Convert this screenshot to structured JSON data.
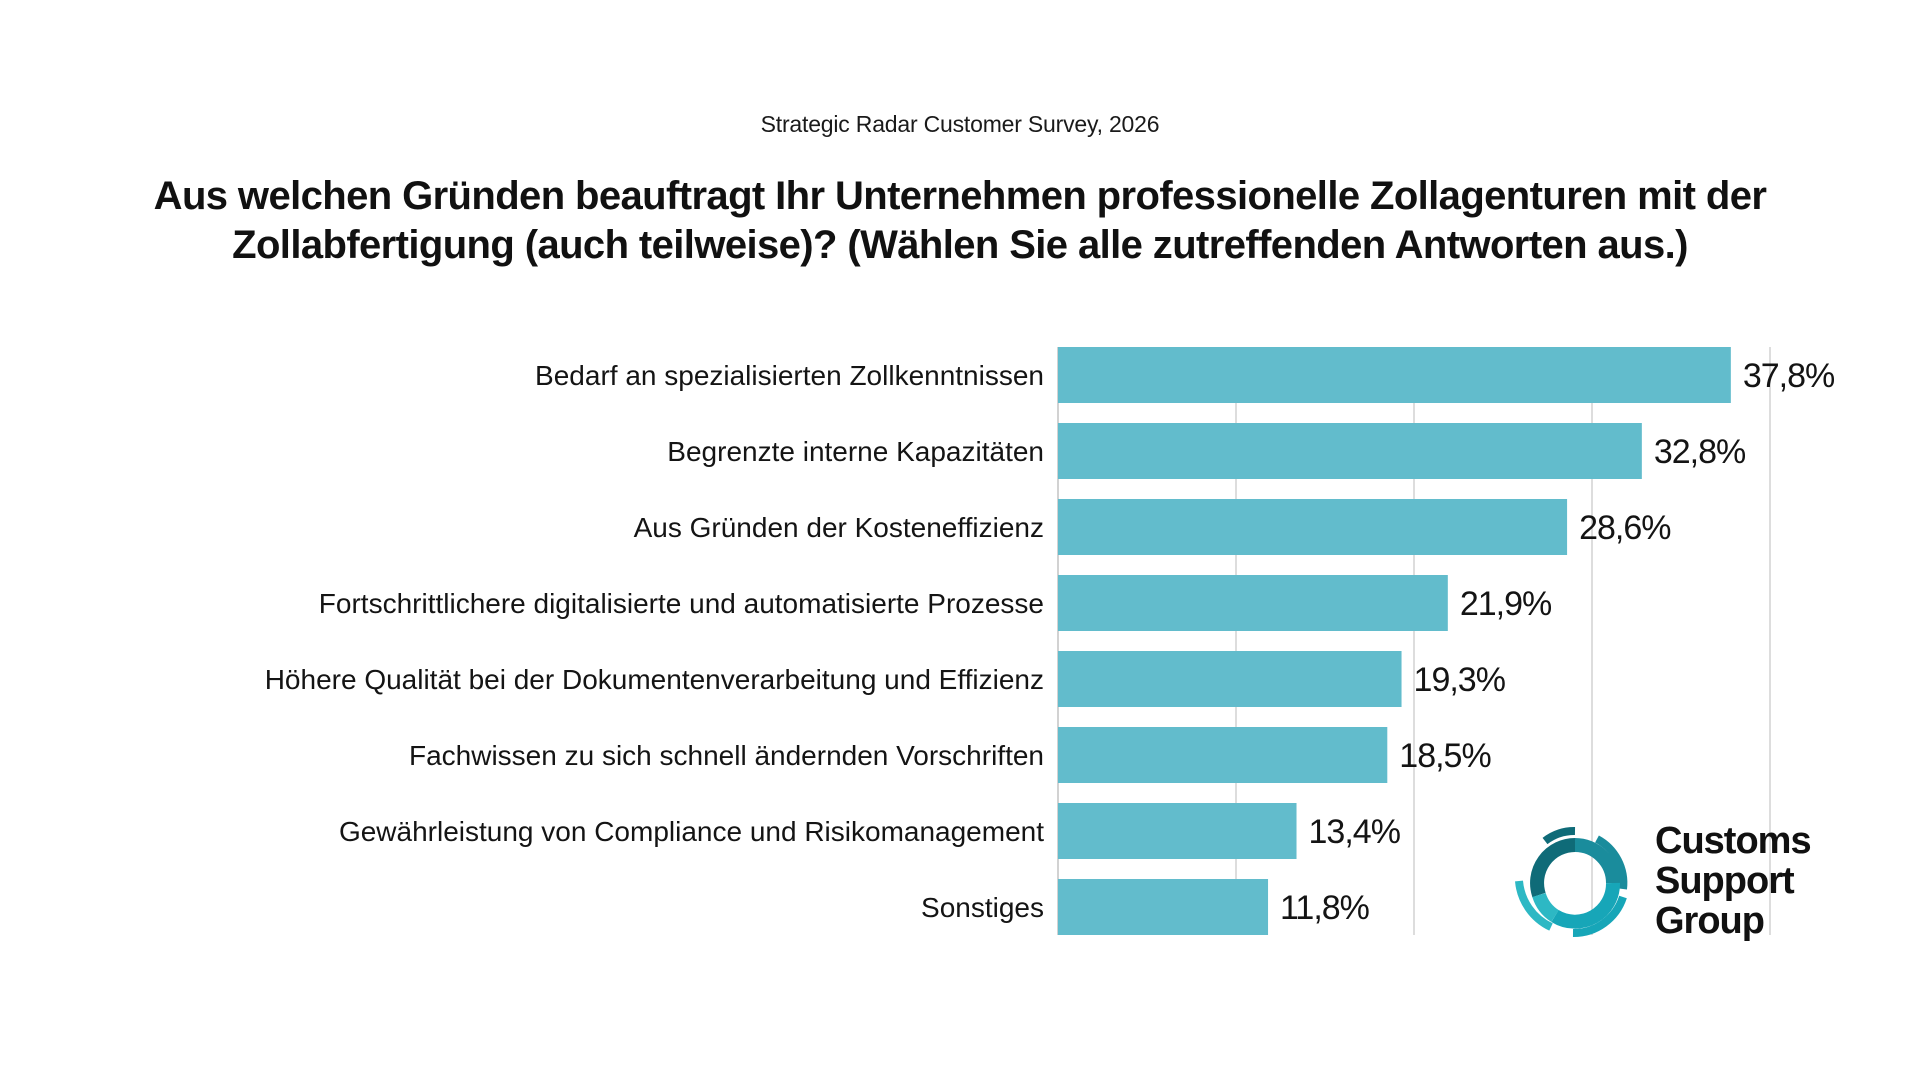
{
  "header": {
    "subtitle": "Strategic Radar Customer Survey, 2026",
    "title": "Aus welchen Gründen beauftragt Ihr Unternehmen professionelle Zollagenturen mit der Zollabfertigung (auch teilweise)? (Wählen Sie alle zutreffenden Antworten aus.)"
  },
  "logo": {
    "lines": [
      "Customs",
      "Support",
      "Group"
    ],
    "icon": "swirl-logo-icon",
    "colors": [
      "#0F6B78",
      "#1E9AA8",
      "#2DB3C2"
    ]
  },
  "chart_data": {
    "type": "bar",
    "orientation": "horizontal",
    "title": "Aus welchen Gründen beauftragt Ihr Unternehmen professionelle Zollagenturen mit der Zollabfertigung (auch teilweise)? (Wählen Sie alle zutreffenden Antworten aus.)",
    "subtitle": "Strategic Radar Customer Survey, 2026",
    "xlabel": "",
    "ylabel": "",
    "categories": [
      "Bedarf an spezialisierten Zollkenntnissen",
      "Begrenzte interne Kapazitäten",
      "Aus Gründen der Kosteneffizienz",
      "Fortschrittlichere digitalisierte und automatisierte Prozesse",
      "Höhere Qualität bei der Dokumentenverarbeitung und Effizienz",
      "Fachwissen zu sich schnell ändernden Vorschriften",
      "Gewährleistung von Compliance und Risikomanagement",
      "Sonstiges"
    ],
    "values": [
      37.8,
      32.8,
      28.6,
      21.9,
      19.3,
      18.5,
      13.4,
      11.8
    ],
    "value_labels": [
      "37,8%",
      "32,8%",
      "28,6%",
      "21,9%",
      "19,3%",
      "18,5%",
      "13,4%",
      "11,8%"
    ],
    "unit": "%",
    "xlim": [
      0,
      40
    ],
    "gridlines": [
      0,
      10,
      20,
      30,
      40
    ],
    "grid": true,
    "show_tick_labels": false,
    "legend": "none",
    "bar_color": "#62BCCC",
    "grid_color": "#D2D2D2"
  }
}
